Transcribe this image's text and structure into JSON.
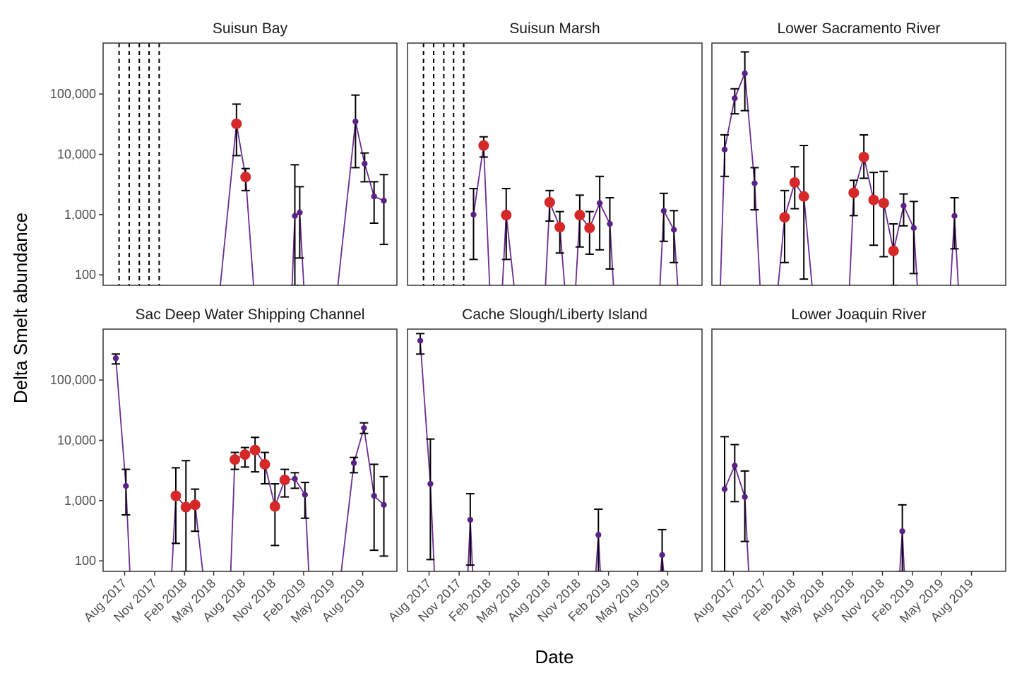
{
  "chart_data": {
    "type": "scatter",
    "facet_layout": "2 rows x 3 columns",
    "xlabel": "Date",
    "ylabel": "Delta Smelt abundance",
    "y_scale": "log10",
    "ylim": [
      67,
      700000
    ],
    "y_ticks": [
      {
        "value": 100,
        "label": "100"
      },
      {
        "value": 1000,
        "label": "1,000"
      },
      {
        "value": 10000,
        "label": "10,000"
      },
      {
        "value": 100000,
        "label": "100,000"
      }
    ],
    "xlim": [
      "2017-05-27",
      "2019-11-14"
    ],
    "x_ticks": [
      {
        "date": "2017-08-01",
        "label": "Aug 2017"
      },
      {
        "date": "2017-11-01",
        "label": "Nov 2017"
      },
      {
        "date": "2018-02-01",
        "label": "Feb 2018"
      },
      {
        "date": "2018-05-01",
        "label": "May 2018"
      },
      {
        "date": "2018-08-01",
        "label": "Aug 2018"
      },
      {
        "date": "2018-11-01",
        "label": "Nov 2018"
      },
      {
        "date": "2019-02-01",
        "label": "Feb 2019"
      },
      {
        "date": "2019-05-01",
        "label": "May 2019"
      },
      {
        "date": "2019-08-01",
        "label": "Aug 2019"
      }
    ],
    "grid": false,
    "legend": "none",
    "colors": {
      "line": "#6a2c91",
      "point_small": "#5b2186",
      "point_large": "#d62828",
      "error_bar": "#000000",
      "panel_border": "#333333"
    },
    "panels": [
      {
        "title": "Suisun Bay",
        "vlines": [
          "2017-07-15",
          "2017-08-15",
          "2017-09-15",
          "2017-10-15",
          "2017-11-15"
        ],
        "line": [
          [
            "2018-05-15",
            0
          ],
          [
            "2018-07-10",
            32000
          ],
          [
            "2018-08-07",
            4200
          ],
          [
            "2018-09-05",
            0
          ],
          [
            "2018-12-25",
            0
          ],
          [
            "2019-01-05",
            950
          ],
          [
            "2019-01-20",
            1080
          ],
          [
            "2019-02-05",
            0
          ],
          [
            "2019-05-10",
            0
          ],
          [
            "2019-07-10",
            35000
          ],
          [
            "2019-08-07",
            7000
          ],
          [
            "2019-09-05",
            2000
          ],
          [
            "2019-10-05",
            1700
          ]
        ],
        "points": [
          {
            "date": "2018-07-10",
            "value": 32000,
            "lo": 9500,
            "hi": 68000,
            "size": "large"
          },
          {
            "date": "2018-08-07",
            "value": 4200,
            "lo": 2500,
            "hi": 5800,
            "size": "large"
          },
          {
            "date": "2019-01-05",
            "value": 950,
            "lo": 67,
            "hi": 6700,
            "size": "small"
          },
          {
            "date": "2019-01-20",
            "value": 1080,
            "lo": 190,
            "hi": 2900,
            "size": "small"
          },
          {
            "date": "2019-07-10",
            "value": 35000,
            "lo": 6000,
            "hi": 96000,
            "size": "small"
          },
          {
            "date": "2019-08-07",
            "value": 7000,
            "lo": 3500,
            "hi": 10500,
            "size": "small"
          },
          {
            "date": "2019-09-05",
            "value": 2000,
            "lo": 720,
            "hi": 3500,
            "size": "small"
          },
          {
            "date": "2019-10-05",
            "value": 1700,
            "lo": 320,
            "hi": 4600,
            "size": "small"
          }
        ]
      },
      {
        "title": "Suisun Marsh",
        "vlines": [
          "2017-07-15",
          "2017-08-15",
          "2017-09-15",
          "2017-10-15",
          "2017-11-15"
        ],
        "line": [
          [
            "2017-12-15",
            1000
          ],
          [
            "2018-01-15",
            14000
          ],
          [
            "2018-02-05",
            0
          ],
          [
            "2018-03-10",
            0
          ],
          [
            "2018-03-25",
            980
          ],
          [
            "2018-04-25",
            0
          ],
          [
            "2018-07-20",
            0
          ],
          [
            "2018-08-05",
            1600
          ],
          [
            "2018-09-05",
            620
          ],
          [
            "2018-09-25",
            0
          ],
          [
            "2018-10-20",
            0
          ],
          [
            "2018-11-05",
            980
          ],
          [
            "2018-12-05",
            600
          ],
          [
            "2019-01-05",
            1550
          ],
          [
            "2019-02-05",
            700
          ],
          [
            "2019-02-20",
            0
          ],
          [
            "2019-07-05",
            0
          ],
          [
            "2019-07-20",
            1150
          ],
          [
            "2019-08-20",
            560
          ],
          [
            "2019-09-05",
            0
          ]
        ],
        "points": [
          {
            "date": "2017-12-15",
            "value": 1000,
            "lo": 180,
            "hi": 2700,
            "size": "small"
          },
          {
            "date": "2018-01-15",
            "value": 14000,
            "lo": 9000,
            "hi": 19500,
            "size": "large"
          },
          {
            "date": "2018-03-25",
            "value": 980,
            "lo": 180,
            "hi": 2700,
            "size": "large"
          },
          {
            "date": "2018-08-05",
            "value": 1600,
            "lo": 780,
            "hi": 2500,
            "size": "large"
          },
          {
            "date": "2018-09-05",
            "value": 620,
            "lo": 230,
            "hi": 1120,
            "size": "large"
          },
          {
            "date": "2018-11-05",
            "value": 980,
            "lo": 290,
            "hi": 2100,
            "size": "large"
          },
          {
            "date": "2018-12-05",
            "value": 600,
            "lo": 220,
            "hi": 1120,
            "size": "large"
          },
          {
            "date": "2019-01-05",
            "value": 1550,
            "lo": 260,
            "hi": 4300,
            "size": "small"
          },
          {
            "date": "2019-02-05",
            "value": 700,
            "lo": 125,
            "hi": 1900,
            "size": "small"
          },
          {
            "date": "2019-07-20",
            "value": 1150,
            "lo": 360,
            "hi": 2250,
            "size": "small"
          },
          {
            "date": "2019-08-20",
            "value": 560,
            "lo": 160,
            "hi": 1160,
            "size": "small"
          }
        ]
      },
      {
        "title": "Lower Sacramento River",
        "vlines": [],
        "line": [
          [
            "2017-06-20",
            0
          ],
          [
            "2017-07-05",
            12000
          ],
          [
            "2017-08-05",
            85000
          ],
          [
            "2017-09-05",
            220000
          ],
          [
            "2017-10-05",
            3300
          ],
          [
            "2017-10-25",
            0
          ],
          [
            "2017-12-10",
            0
          ],
          [
            "2018-01-05",
            900
          ],
          [
            "2018-02-05",
            3400
          ],
          [
            "2018-03-05",
            2000
          ],
          [
            "2018-04-05",
            0
          ],
          [
            "2018-07-20",
            0
          ],
          [
            "2018-08-05",
            2300
          ],
          [
            "2018-09-05",
            9000
          ],
          [
            "2018-10-05",
            1750
          ],
          [
            "2018-11-05",
            1550
          ],
          [
            "2018-12-05",
            250
          ],
          [
            "2019-01-05",
            1400
          ],
          [
            "2019-02-05",
            600
          ],
          [
            "2019-02-20",
            0
          ],
          [
            "2019-05-25",
            0
          ],
          [
            "2019-06-10",
            950
          ],
          [
            "2019-06-25",
            0
          ]
        ],
        "points": [
          {
            "date": "2017-07-05",
            "value": 12000,
            "lo": 4300,
            "hi": 21000,
            "size": "small"
          },
          {
            "date": "2017-08-05",
            "value": 85000,
            "lo": 47000,
            "hi": 122000,
            "size": "small"
          },
          {
            "date": "2017-09-05",
            "value": 220000,
            "lo": 53000,
            "hi": 500000,
            "size": "small"
          },
          {
            "date": "2017-10-05",
            "value": 3300,
            "lo": 1200,
            "hi": 6000,
            "size": "small"
          },
          {
            "date": "2018-01-05",
            "value": 900,
            "lo": 160,
            "hi": 2500,
            "size": "large"
          },
          {
            "date": "2018-02-05",
            "value": 3400,
            "lo": 1250,
            "hi": 6200,
            "size": "large"
          },
          {
            "date": "2018-03-05",
            "value": 2000,
            "lo": 85,
            "hi": 14000,
            "size": "large"
          },
          {
            "date": "2018-08-05",
            "value": 2300,
            "lo": 960,
            "hi": 3700,
            "size": "large"
          },
          {
            "date": "2018-09-05",
            "value": 9000,
            "lo": 4000,
            "hi": 21000,
            "size": "large"
          },
          {
            "date": "2018-10-05",
            "value": 1750,
            "lo": 310,
            "hi": 5000,
            "size": "large"
          },
          {
            "date": "2018-11-05",
            "value": 1550,
            "lo": 200,
            "hi": 5200,
            "size": "large"
          },
          {
            "date": "2018-12-05",
            "value": 250,
            "lo": 67,
            "hi": 700,
            "size": "large"
          },
          {
            "date": "2019-01-05",
            "value": 1400,
            "lo": 650,
            "hi": 2200,
            "size": "small"
          },
          {
            "date": "2019-02-05",
            "value": 600,
            "lo": 105,
            "hi": 1650,
            "size": "small"
          },
          {
            "date": "2019-06-10",
            "value": 950,
            "lo": 270,
            "hi": 1900,
            "size": "small"
          }
        ]
      },
      {
        "title": "Sac Deep Water Shipping Channel",
        "vlines": [],
        "line": [
          [
            "2017-07-05",
            230000
          ],
          [
            "2017-08-05",
            1750
          ],
          [
            "2017-08-20",
            0
          ],
          [
            "2017-12-20",
            0
          ],
          [
            "2018-01-05",
            1200
          ],
          [
            "2018-02-05",
            780
          ],
          [
            "2018-03-05",
            850
          ],
          [
            "2018-04-05",
            0
          ],
          [
            "2018-06-20",
            0
          ],
          [
            "2018-07-05",
            4800
          ],
          [
            "2018-08-05",
            5800
          ],
          [
            "2018-09-05",
            6900
          ],
          [
            "2018-10-05",
            4000
          ],
          [
            "2018-11-05",
            800
          ],
          [
            "2018-12-05",
            2200
          ],
          [
            "2019-01-05",
            2300
          ],
          [
            "2019-02-05",
            1250
          ],
          [
            "2019-02-20",
            0
          ],
          [
            "2019-05-20",
            0
          ],
          [
            "2019-07-05",
            4200
          ],
          [
            "2019-08-05",
            16000
          ],
          [
            "2019-09-05",
            1200
          ],
          [
            "2019-10-05",
            850
          ]
        ],
        "points": [
          {
            "date": "2017-07-05",
            "value": 230000,
            "lo": 185000,
            "hi": 270000,
            "size": "small"
          },
          {
            "date": "2017-08-05",
            "value": 1750,
            "lo": 580,
            "hi": 3300,
            "size": "small"
          },
          {
            "date": "2018-01-05",
            "value": 1200,
            "lo": 195,
            "hi": 3500,
            "size": "large"
          },
          {
            "date": "2018-02-05",
            "value": 780,
            "lo": 67,
            "hi": 4600,
            "size": "large"
          },
          {
            "date": "2018-03-05",
            "value": 850,
            "lo": 310,
            "hi": 1550,
            "size": "large"
          },
          {
            "date": "2018-07-05",
            "value": 4800,
            "lo": 3300,
            "hi": 6300,
            "size": "large"
          },
          {
            "date": "2018-08-05",
            "value": 5800,
            "lo": 3600,
            "hi": 7600,
            "size": "large"
          },
          {
            "date": "2018-09-05",
            "value": 6900,
            "lo": 3000,
            "hi": 11200,
            "size": "large"
          },
          {
            "date": "2018-10-05",
            "value": 4000,
            "lo": 1900,
            "hi": 6300,
            "size": "large"
          },
          {
            "date": "2018-11-05",
            "value": 800,
            "lo": 180,
            "hi": 1900,
            "size": "large"
          },
          {
            "date": "2018-12-05",
            "value": 2200,
            "lo": 1150,
            "hi": 3300,
            "size": "large"
          },
          {
            "date": "2019-01-05",
            "value": 2300,
            "lo": 1600,
            "hi": 2900,
            "size": "small"
          },
          {
            "date": "2019-02-05",
            "value": 1250,
            "lo": 510,
            "hi": 2000,
            "size": "small"
          },
          {
            "date": "2019-07-05",
            "value": 4200,
            "lo": 2900,
            "hi": 5200,
            "size": "small"
          },
          {
            "date": "2019-08-05",
            "value": 16000,
            "lo": 13000,
            "hi": 19500,
            "size": "small"
          },
          {
            "date": "2019-09-05",
            "value": 1200,
            "lo": 150,
            "hi": 4000,
            "size": "small"
          },
          {
            "date": "2019-10-05",
            "value": 850,
            "lo": 120,
            "hi": 2500,
            "size": "small"
          }
        ]
      },
      {
        "title": "Cache Slough/Liberty Island",
        "vlines": [],
        "line": [
          [
            "2017-07-05",
            450000
          ],
          [
            "2017-08-05",
            1900
          ],
          [
            "2017-08-20",
            0
          ],
          [
            "2017-11-25",
            0
          ],
          [
            "2017-12-05",
            480
          ],
          [
            "2017-12-15",
            0
          ],
          [
            "2018-12-20",
            0
          ],
          [
            "2019-01-01",
            270
          ],
          [
            "2019-01-10",
            0
          ],
          [
            "2019-07-05",
            0
          ],
          [
            "2019-07-15",
            125
          ],
          [
            "2019-07-25",
            0
          ]
        ],
        "points": [
          {
            "date": "2017-07-05",
            "value": 450000,
            "lo": 270000,
            "hi": 590000,
            "size": "small"
          },
          {
            "date": "2017-08-05",
            "value": 1900,
            "lo": 105,
            "hi": 10500,
            "size": "small"
          },
          {
            "date": "2017-12-05",
            "value": 480,
            "lo": 85,
            "hi": 1300,
            "size": "small"
          },
          {
            "date": "2019-01-01",
            "value": 270,
            "lo": 67,
            "hi": 720,
            "size": "small"
          },
          {
            "date": "2019-07-15",
            "value": 125,
            "lo": 67,
            "hi": 330,
            "size": "small"
          }
        ]
      },
      {
        "title": "Lower Joaquin River",
        "vlines": [],
        "line": [
          [
            "2017-07-05",
            1550
          ],
          [
            "2017-08-05",
            3800
          ],
          [
            "2017-09-05",
            1150
          ],
          [
            "2017-09-20",
            0
          ],
          [
            "2018-12-20",
            0
          ],
          [
            "2019-01-01",
            310
          ],
          [
            "2019-01-10",
            0
          ]
        ],
        "points": [
          {
            "date": "2017-07-05",
            "value": 1550,
            "lo": 67,
            "hi": 11500,
            "size": "small"
          },
          {
            "date": "2017-08-05",
            "value": 3800,
            "lo": 960,
            "hi": 8500,
            "size": "small"
          },
          {
            "date": "2017-09-05",
            "value": 1150,
            "lo": 210,
            "hi": 3100,
            "size": "small"
          },
          {
            "date": "2019-01-01",
            "value": 310,
            "lo": 67,
            "hi": 850,
            "size": "small"
          }
        ]
      }
    ]
  }
}
